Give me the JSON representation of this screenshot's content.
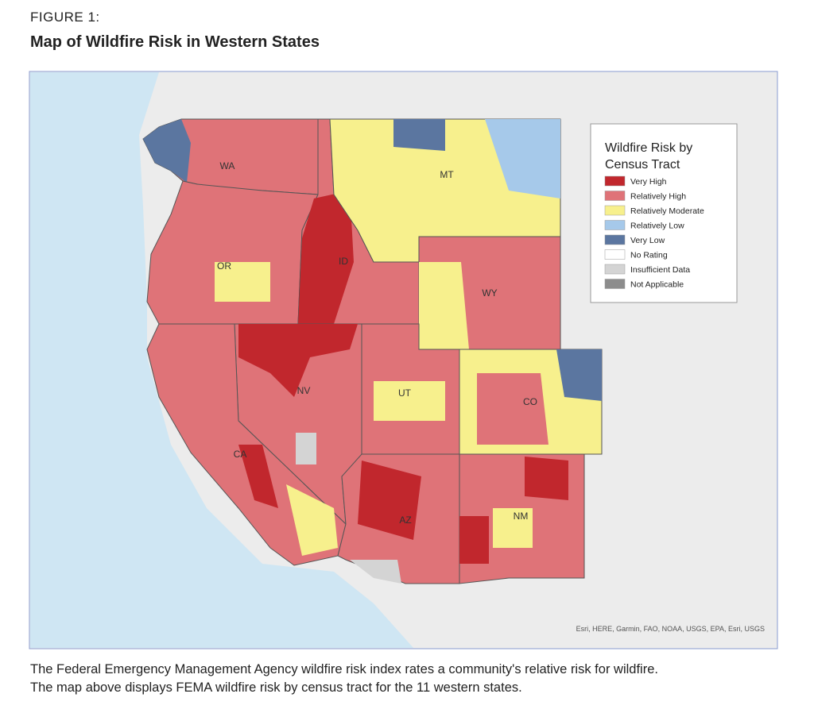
{
  "header": {
    "label": "FIGURE 1:",
    "title": "Map of Wildfire Risk in Western States"
  },
  "legend": {
    "title_lines": [
      "Wildfire Risk by",
      "Census Tract"
    ],
    "items": [
      {
        "label": "Very High",
        "color": "#c1272d"
      },
      {
        "label": "Relatively High",
        "color": "#df7378"
      },
      {
        "label": "Relatively Moderate",
        "color": "#f7f08d"
      },
      {
        "label": "Relatively Low",
        "color": "#a6c9ea"
      },
      {
        "label": "Very Low",
        "color": "#5b76a0"
      },
      {
        "label": "No Rating",
        "color": "#ffffff"
      },
      {
        "label": "Insufficient Data",
        "color": "#d4d4d4"
      },
      {
        "label": "Not Applicable",
        "color": "#8c8c8c"
      }
    ]
  },
  "states": [
    "WA",
    "OR",
    "ID",
    "MT",
    "WY",
    "NV",
    "CA",
    "UT",
    "CO",
    "AZ",
    "NM"
  ],
  "attribution": "Esri, HERE, Garmin, FAO, NOAA, USGS, EPA, Esri, USGS",
  "caption": [
    "The Federal Emergency Management Agency wildfire risk index rates a community's relative risk for wildfire.",
    "The map above displays FEMA wildfire risk by census tract for the 11 western states."
  ]
}
